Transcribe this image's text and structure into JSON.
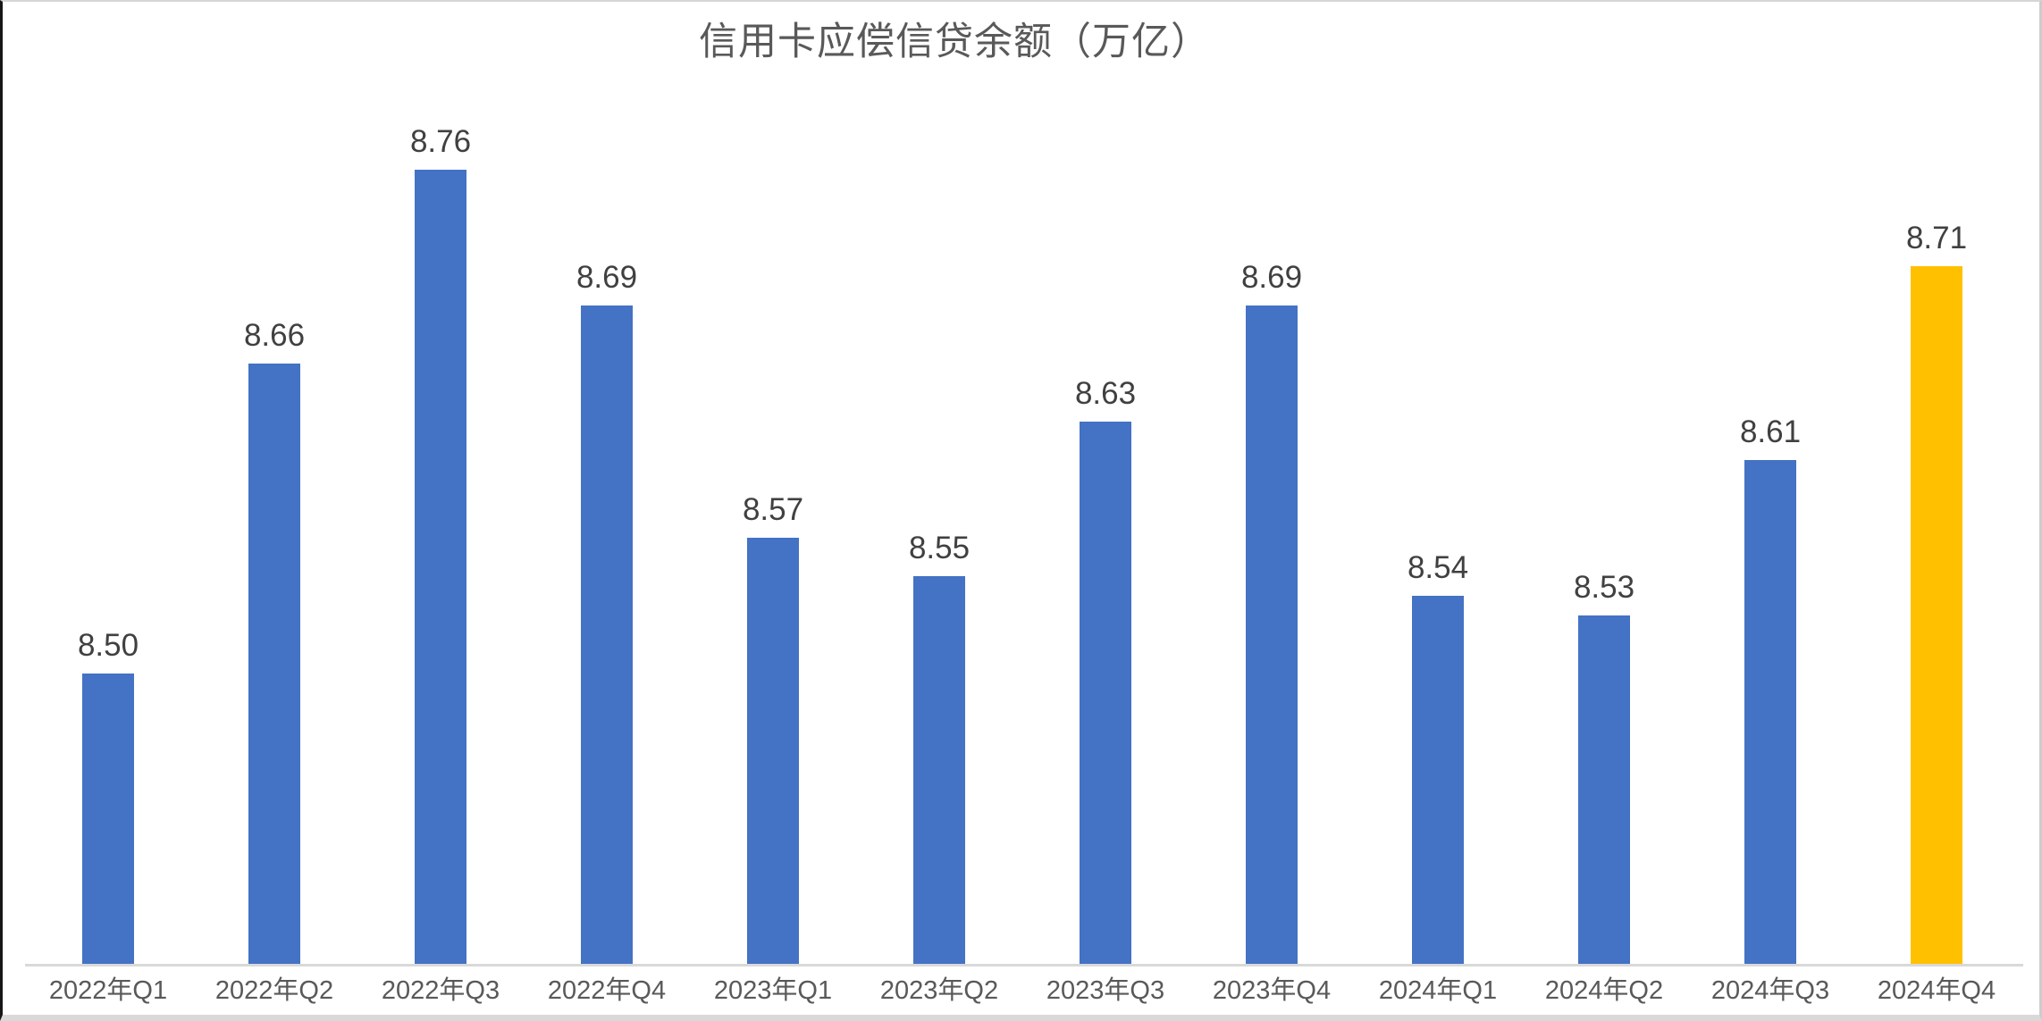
{
  "chart_data": {
    "type": "bar",
    "title": "信用卡应偿信贷余额（万亿）",
    "categories": [
      "2022年Q1",
      "2022年Q2",
      "2022年Q3",
      "2022年Q4",
      "2023年Q1",
      "2023年Q2",
      "2023年Q3",
      "2023年Q4",
      "2024年Q1",
      "2024年Q2",
      "2024年Q3",
      "2024年Q4"
    ],
    "values": [
      8.5,
      8.66,
      8.76,
      8.69,
      8.57,
      8.55,
      8.63,
      8.69,
      8.54,
      8.53,
      8.61,
      8.71
    ],
    "value_labels": [
      "8.50",
      "8.66",
      "8.76",
      "8.69",
      "8.57",
      "8.55",
      "8.63",
      "8.69",
      "8.54",
      "8.53",
      "8.61",
      "8.71"
    ],
    "xlabel": "",
    "ylabel": "",
    "ylim": [
      8.35,
      8.8
    ],
    "grid": false,
    "legend": false,
    "bar_color": "#4472C4",
    "highlight_index": 11,
    "highlight_color": "#FFC000",
    "axis_line_color": "#D9D9D9",
    "title_color": "#595959",
    "value_label_color": "#404040",
    "category_label_color": "#595959",
    "background": "#FFFFFF"
  }
}
